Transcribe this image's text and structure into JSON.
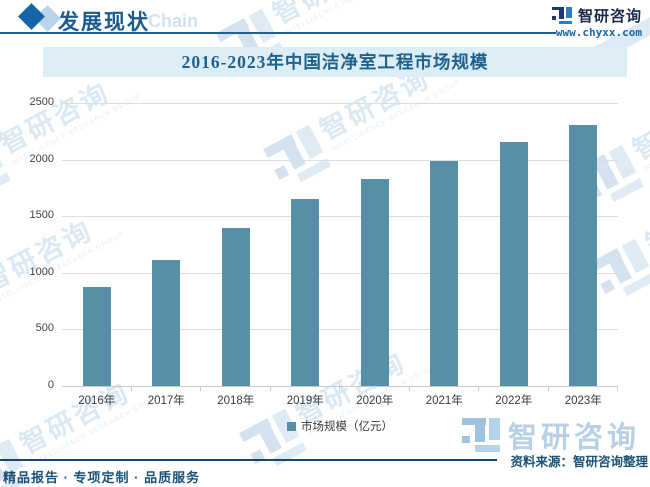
{
  "header": {
    "section_title": "发展现状",
    "ghost_text": "Chain",
    "brand_name": "智研咨询",
    "brand_url": "www.chyxx.com"
  },
  "chart_data": {
    "type": "bar",
    "title": "2016-2023年中国洁净室工程市场规模",
    "categories": [
      "2016年",
      "2017年",
      "2018年",
      "2019年",
      "2020年",
      "2021年",
      "2022年",
      "2023年"
    ],
    "values": [
      875,
      1115,
      1400,
      1655,
      1830,
      1990,
      2155,
      2310
    ],
    "xlabel": "",
    "ylabel": "",
    "ylim": [
      0,
      2500
    ],
    "yticks": [
      0,
      500,
      1000,
      1500,
      2000,
      2500
    ],
    "grid": true,
    "legend": [
      "市场规模（亿元）"
    ],
    "legend_position": "bottom",
    "bar_color": "#578fa6"
  },
  "legend": {
    "label": "市场规模（亿元）"
  },
  "watermark": {
    "text": "智研咨询",
    "subtext": "INTELLIGENCE RESEARCH GROUP"
  },
  "footer": {
    "source": "资料来源：智研咨询整理",
    "tagline": "精品报告 · 专项定制 · 品质服务",
    "big_logo_text": "智研咨询"
  }
}
